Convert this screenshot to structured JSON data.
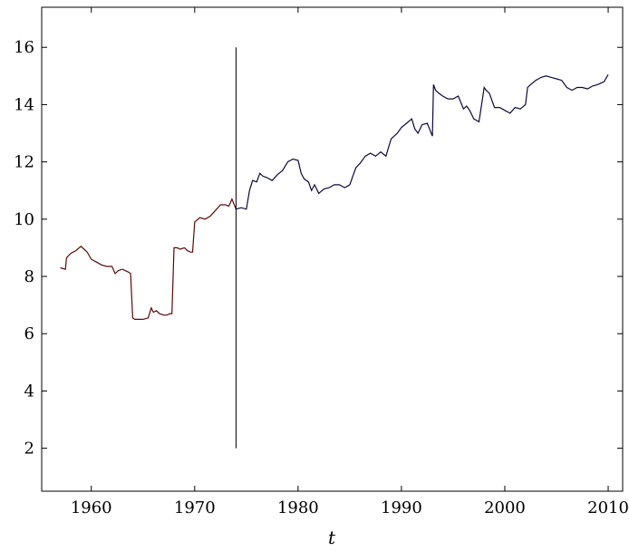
{
  "chart_data": {
    "type": "line",
    "title": "",
    "xlabel": "t",
    "ylabel": "",
    "xlim": [
      1955.2,
      2011.4
    ],
    "ylim": [
      0.5,
      17.4
    ],
    "xticks": [
      1960,
      1970,
      1980,
      1990,
      2000,
      2010
    ],
    "xtick_labels": [
      "1960",
      "1970",
      "1980",
      "1990",
      "2000",
      "2010"
    ],
    "yticks": [
      2,
      4,
      6,
      8,
      10,
      12,
      14,
      16
    ],
    "ytick_labels": [
      "2",
      "4",
      "6",
      "8",
      "10",
      "12",
      "14",
      "16"
    ],
    "grid": false,
    "legend": "none",
    "colors": {
      "segment1": "#5a0a0a",
      "segment2": "#0a0a3a",
      "marker": "#000000"
    },
    "vertical_line": {
      "x": 1974.0,
      "y_from": 2.0,
      "y_to": 16.0
    },
    "series": [
      {
        "values_note": "",
        "x": [
          1957.0,
          1957.5,
          1957.6,
          1958.0,
          1958.5,
          1959.0,
          1959.3,
          1959.6,
          1960.0,
          1960.5,
          1961.0,
          1961.5,
          1962.0,
          1962.3,
          1962.6,
          1963.0,
          1963.3,
          1963.6,
          1963.8,
          1964.0,
          1964.2,
          1964.5,
          1965.0,
          1965.5,
          1965.8,
          1966.0,
          1966.3,
          1966.6,
          1967.0,
          1967.3,
          1967.6,
          1967.8,
          1968.0,
          1968.3,
          1968.6,
          1969.0,
          1969.3,
          1969.6,
          1969.8,
          1970.0,
          1970.5,
          1971.0,
          1971.5,
          1972.0,
          1972.5,
          1973.0,
          1973.3,
          1973.6,
          1974.0
        ],
        "values": [
          8.3,
          8.25,
          8.65,
          8.8,
          8.9,
          9.05,
          8.95,
          8.85,
          8.6,
          8.5,
          8.4,
          8.35,
          8.35,
          8.1,
          8.2,
          8.25,
          8.2,
          8.15,
          8.1,
          6.55,
          6.5,
          6.5,
          6.5,
          6.55,
          6.9,
          6.75,
          6.8,
          6.7,
          6.65,
          6.65,
          6.7,
          6.7,
          9.0,
          9.0,
          8.95,
          9.0,
          8.9,
          8.85,
          8.85,
          9.9,
          10.05,
          10.0,
          10.1,
          10.3,
          10.5,
          10.5,
          10.45,
          10.7,
          10.35
        ]
      },
      {
        "x": [
          1974.0,
          1974.5,
          1975.0,
          1975.3,
          1975.6,
          1976.0,
          1976.3,
          1976.6,
          1977.0,
          1977.5,
          1978.0,
          1978.5,
          1979.0,
          1979.5,
          1980.0,
          1980.3,
          1980.6,
          1981.0,
          1981.3,
          1981.6,
          1982.0,
          1982.5,
          1983.0,
          1983.5,
          1984.0,
          1984.5,
          1985.0,
          1985.3,
          1985.6,
          1986.0,
          1986.5,
          1987.0,
          1987.5,
          1988.0,
          1988.5,
          1989.0,
          1989.3,
          1989.6,
          1990.0,
          1990.5,
          1991.0,
          1991.3,
          1991.6,
          1992.0,
          1992.5,
          1993.0,
          1993.1,
          1993.3,
          1993.6,
          1994.0,
          1994.5,
          1995.0,
          1995.5,
          1996.0,
          1996.3,
          1996.6,
          1997.0,
          1997.5,
          1998.0,
          1998.2,
          1998.5,
          1999.0,
          1999.5,
          2000.0,
          2000.5,
          2001.0,
          2001.5,
          2002.0,
          2002.2,
          2002.5,
          2003.0,
          2003.5,
          2004.0,
          2004.5,
          2005.0,
          2005.5,
          2006.0,
          2006.5,
          2007.0,
          2007.5,
          2008.0,
          2008.5,
          2009.0,
          2009.3,
          2009.6,
          2010.0
        ],
        "values": [
          10.35,
          10.4,
          10.35,
          11.0,
          11.35,
          11.3,
          11.6,
          11.5,
          11.45,
          11.35,
          11.55,
          11.7,
          12.0,
          12.1,
          12.05,
          11.6,
          11.4,
          11.3,
          11.0,
          11.2,
          10.9,
          11.05,
          11.1,
          11.2,
          11.2,
          11.1,
          11.2,
          11.5,
          11.8,
          11.95,
          12.2,
          12.3,
          12.2,
          12.35,
          12.2,
          12.8,
          12.9,
          13.0,
          13.2,
          13.35,
          13.5,
          13.15,
          13.0,
          13.3,
          13.35,
          12.9,
          14.7,
          14.5,
          14.4,
          14.3,
          14.2,
          14.2,
          14.3,
          13.85,
          13.95,
          13.8,
          13.5,
          13.4,
          14.6,
          14.5,
          14.4,
          13.9,
          13.9,
          13.8,
          13.7,
          13.9,
          13.85,
          14.0,
          14.6,
          14.7,
          14.85,
          14.95,
          15.0,
          14.95,
          14.9,
          14.85,
          14.6,
          14.5,
          14.6,
          14.6,
          14.55,
          14.65,
          14.7,
          14.75,
          14.8,
          15.05
        ]
      }
    ]
  }
}
